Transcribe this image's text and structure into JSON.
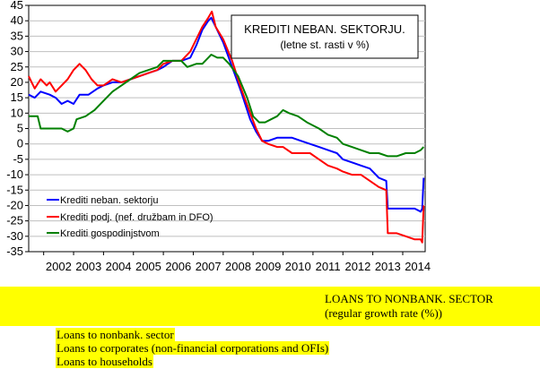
{
  "chart_data": {
    "type": "line",
    "title": "KREDITI NEBAN. SEKTORJU.",
    "subtitle": "(letne st. rasti v %)",
    "ylim": [
      -35,
      45
    ],
    "yticks": [
      45,
      40,
      35,
      30,
      25,
      20,
      15,
      10,
      5,
      0,
      -5,
      -10,
      -15,
      -20,
      -25,
      -30,
      -35
    ],
    "xlim": [
      2001.5,
      2014.75
    ],
    "xticks": [
      "2002",
      "2003",
      "2004",
      "2005",
      "2006",
      "2007",
      "2008",
      "2009",
      "2010",
      "2011",
      "2012",
      "2013",
      "2014"
    ],
    "grid": true,
    "legend_position": "bottom-left",
    "series": [
      {
        "name": "Krediti neban. sektorju",
        "color": "#0000ff",
        "points": [
          [
            2001.5,
            16
          ],
          [
            2001.7,
            15
          ],
          [
            2001.9,
            17
          ],
          [
            2002.2,
            16
          ],
          [
            2002.4,
            15
          ],
          [
            2002.6,
            13
          ],
          [
            2002.8,
            14
          ],
          [
            2003.0,
            13
          ],
          [
            2003.2,
            16
          ],
          [
            2003.5,
            16
          ],
          [
            2003.8,
            18
          ],
          [
            2004.0,
            19
          ],
          [
            2004.3,
            20
          ],
          [
            2004.6,
            20
          ],
          [
            2004.9,
            21
          ],
          [
            2005.2,
            22
          ],
          [
            2005.5,
            23
          ],
          [
            2005.8,
            24
          ],
          [
            2006.0,
            25
          ],
          [
            2006.3,
            27
          ],
          [
            2006.6,
            27
          ],
          [
            2006.9,
            28
          ],
          [
            2007.1,
            32
          ],
          [
            2007.3,
            37
          ],
          [
            2007.5,
            40
          ],
          [
            2007.6,
            41
          ],
          [
            2007.75,
            38
          ],
          [
            2008.0,
            33
          ],
          [
            2008.3,
            25
          ],
          [
            2008.6,
            17
          ],
          [
            2008.9,
            8
          ],
          [
            2009.1,
            4
          ],
          [
            2009.3,
            1
          ],
          [
            2009.5,
            1
          ],
          [
            2009.8,
            2
          ],
          [
            2010.0,
            2
          ],
          [
            2010.3,
            2
          ],
          [
            2010.6,
            1
          ],
          [
            2010.9,
            0
          ],
          [
            2011.2,
            -1
          ],
          [
            2011.5,
            -2
          ],
          [
            2011.8,
            -3
          ],
          [
            2012.0,
            -5
          ],
          [
            2012.3,
            -6
          ],
          [
            2012.6,
            -7
          ],
          [
            2012.9,
            -8
          ],
          [
            2013.2,
            -11
          ],
          [
            2013.45,
            -12
          ],
          [
            2013.5,
            -21
          ],
          [
            2013.8,
            -21
          ],
          [
            2014.1,
            -21
          ],
          [
            2014.4,
            -21
          ],
          [
            2014.6,
            -22
          ],
          [
            2014.65,
            -21
          ],
          [
            2014.7,
            -11
          ]
        ]
      },
      {
        "name": "Krediti podj. (nef. družbam in DFO)",
        "color": "#ff0000",
        "points": [
          [
            2001.5,
            22
          ],
          [
            2001.6,
            20
          ],
          [
            2001.7,
            18
          ],
          [
            2001.9,
            21
          ],
          [
            2002.1,
            19
          ],
          [
            2002.2,
            20
          ],
          [
            2002.4,
            17
          ],
          [
            2002.6,
            19
          ],
          [
            2002.8,
            21
          ],
          [
            2003.0,
            24
          ],
          [
            2003.2,
            26
          ],
          [
            2003.4,
            24
          ],
          [
            2003.6,
            21
          ],
          [
            2003.8,
            19
          ],
          [
            2004.0,
            19
          ],
          [
            2004.3,
            21
          ],
          [
            2004.6,
            20
          ],
          [
            2004.9,
            21
          ],
          [
            2005.2,
            22
          ],
          [
            2005.5,
            23
          ],
          [
            2005.8,
            24
          ],
          [
            2006.0,
            26
          ],
          [
            2006.3,
            27
          ],
          [
            2006.6,
            27
          ],
          [
            2006.9,
            30
          ],
          [
            2007.1,
            34
          ],
          [
            2007.3,
            38
          ],
          [
            2007.5,
            41
          ],
          [
            2007.62,
            43
          ],
          [
            2007.75,
            38
          ],
          [
            2008.0,
            34
          ],
          [
            2008.3,
            27
          ],
          [
            2008.6,
            18
          ],
          [
            2008.9,
            10
          ],
          [
            2009.1,
            5
          ],
          [
            2009.3,
            1
          ],
          [
            2009.5,
            0
          ],
          [
            2009.8,
            -1
          ],
          [
            2010.0,
            -1
          ],
          [
            2010.3,
            -3
          ],
          [
            2010.6,
            -3
          ],
          [
            2010.9,
            -3
          ],
          [
            2011.2,
            -5
          ],
          [
            2011.5,
            -7
          ],
          [
            2011.8,
            -8
          ],
          [
            2012.0,
            -9
          ],
          [
            2012.3,
            -10
          ],
          [
            2012.6,
            -10
          ],
          [
            2012.9,
            -12
          ],
          [
            2013.2,
            -14
          ],
          [
            2013.45,
            -15
          ],
          [
            2013.5,
            -29
          ],
          [
            2013.8,
            -29
          ],
          [
            2014.1,
            -30
          ],
          [
            2014.4,
            -31
          ],
          [
            2014.6,
            -31
          ],
          [
            2014.65,
            -32
          ],
          [
            2014.7,
            -20
          ]
        ]
      },
      {
        "name": "Krediti gospodinjstvom",
        "color": "#008000",
        "points": [
          [
            2001.5,
            9
          ],
          [
            2001.8,
            9
          ],
          [
            2001.9,
            5
          ],
          [
            2002.3,
            5
          ],
          [
            2002.6,
            5
          ],
          [
            2002.8,
            4
          ],
          [
            2003.0,
            5
          ],
          [
            2003.1,
            8
          ],
          [
            2003.4,
            9
          ],
          [
            2003.7,
            11
          ],
          [
            2004.0,
            14
          ],
          [
            2004.3,
            17
          ],
          [
            2004.6,
            19
          ],
          [
            2004.9,
            21
          ],
          [
            2005.2,
            23
          ],
          [
            2005.5,
            24
          ],
          [
            2005.8,
            25
          ],
          [
            2006.0,
            27
          ],
          [
            2006.3,
            27
          ],
          [
            2006.6,
            27
          ],
          [
            2006.8,
            25
          ],
          [
            2007.1,
            26
          ],
          [
            2007.3,
            26
          ],
          [
            2007.5,
            28
          ],
          [
            2007.6,
            29
          ],
          [
            2007.8,
            28
          ],
          [
            2008.0,
            28
          ],
          [
            2008.2,
            26
          ],
          [
            2008.5,
            22
          ],
          [
            2008.8,
            15
          ],
          [
            2009.0,
            9
          ],
          [
            2009.2,
            7
          ],
          [
            2009.4,
            7
          ],
          [
            2009.6,
            8
          ],
          [
            2009.8,
            9
          ],
          [
            2010.0,
            11
          ],
          [
            2010.2,
            10
          ],
          [
            2010.5,
            9
          ],
          [
            2010.8,
            7
          ],
          [
            2011.2,
            5
          ],
          [
            2011.5,
            3
          ],
          [
            2011.8,
            2
          ],
          [
            2012.0,
            0
          ],
          [
            2012.3,
            -1
          ],
          [
            2012.6,
            -2
          ],
          [
            2012.9,
            -3
          ],
          [
            2013.2,
            -3
          ],
          [
            2013.5,
            -4
          ],
          [
            2013.8,
            -4
          ],
          [
            2014.1,
            -3
          ],
          [
            2014.4,
            -3
          ],
          [
            2014.6,
            -2
          ],
          [
            2014.7,
            -1
          ]
        ]
      }
    ]
  },
  "translation": {
    "title": "LOANS TO NONBANK. SECTOR",
    "subtitle": "(regular growth rate (%))",
    "legend": [
      "Loans to nonbank. sector",
      "Loans to corporates (non-financial corporations and OFIs)",
      "Loans to households"
    ]
  }
}
